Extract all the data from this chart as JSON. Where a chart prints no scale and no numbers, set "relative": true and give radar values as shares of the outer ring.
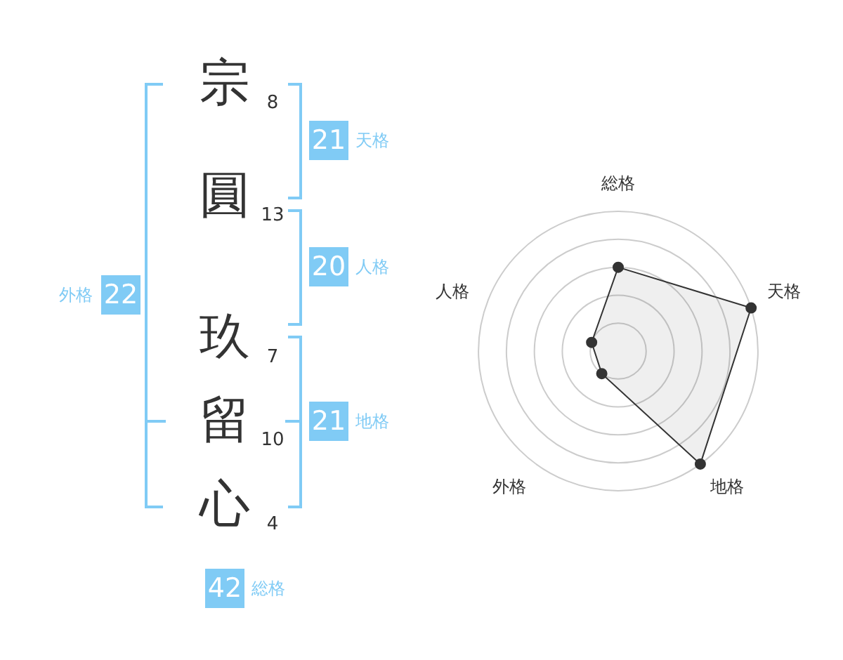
{
  "chart_data": [
    {
      "type": "other",
      "categories": [
        "宗",
        "圓",
        "玖",
        "留",
        "心"
      ],
      "values": [
        8,
        13,
        7,
        10,
        4
      ],
      "data_labels": true
    },
    {
      "type": "other",
      "categories": [
        "天格",
        "人格",
        "地格",
        "外格",
        "総格"
      ],
      "values": [
        21,
        20,
        21,
        22,
        42
      ],
      "data_labels": true,
      "color": "#80cbf5"
    },
    {
      "type": "radar",
      "categories": [
        "総格",
        "天格",
        "地格",
        "外格",
        "人格"
      ],
      "relative": true,
      "series": [
        {
          "color": "#333333",
          "values": [
            0.6,
            1,
            1,
            0.2,
            0.2
          ]
        }
      ],
      "marker": "circle",
      "grid": true,
      "legend": false
    }
  ]
}
